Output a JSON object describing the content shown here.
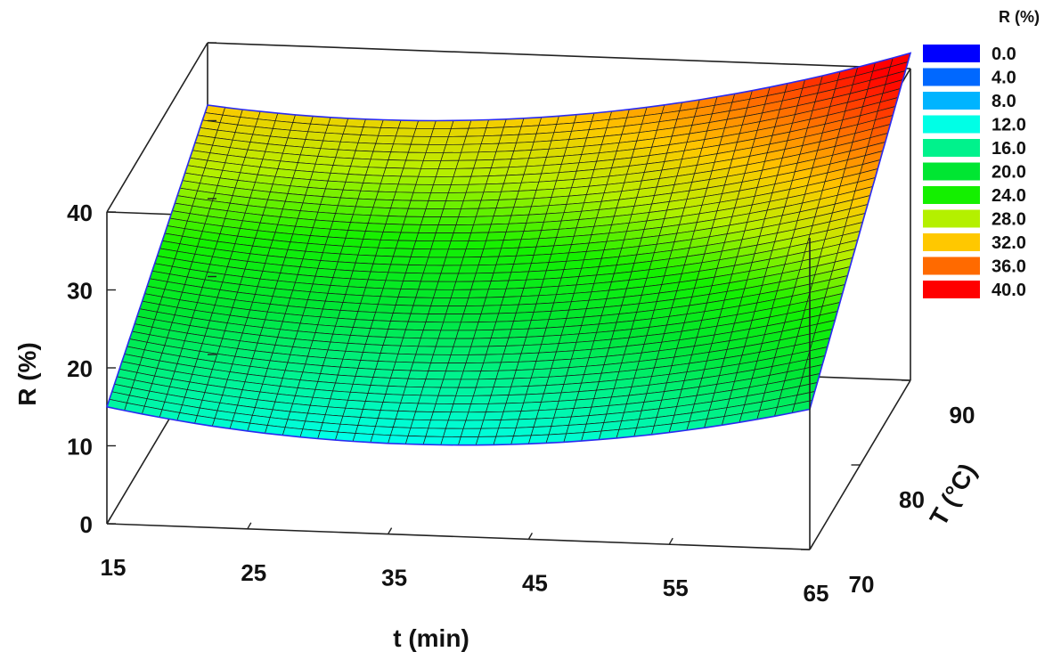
{
  "chart_data": {
    "type": "surface",
    "title": "",
    "xlabel": "t (min)",
    "ylabel": "T (°C)",
    "zlabel": "R (%)",
    "x_ticks": [
      "15",
      "25",
      "35",
      "45",
      "55",
      "65"
    ],
    "y_ticks": [
      "70",
      "80",
      "90"
    ],
    "z_ticks": [
      "0",
      "10",
      "20",
      "30",
      "40"
    ],
    "xlim": [
      15,
      65
    ],
    "ylim": [
      70,
      90
    ],
    "zlim": [
      0,
      40
    ],
    "surface_corners": [
      {
        "t": 15,
        "T": 70,
        "R": 15
      },
      {
        "t": 15,
        "T": 90,
        "R": 32
      },
      {
        "t": 65,
        "T": 70,
        "R": 18
      },
      {
        "t": 65,
        "T": 90,
        "R": 42
      }
    ],
    "surface_min": {
      "t": 37,
      "T": 70,
      "R": 10
    },
    "legend": {
      "title": "R (%)",
      "position": "top-right",
      "items": [
        {
          "label": "0.0",
          "color": "#0000ff"
        },
        {
          "label": "4.0",
          "color": "#0068ff"
        },
        {
          "label": "8.0",
          "color": "#00b4ff"
        },
        {
          "label": "12.0",
          "color": "#00ffe6"
        },
        {
          "label": "16.0",
          "color": "#00f28c"
        },
        {
          "label": "20.0",
          "color": "#00e632"
        },
        {
          "label": "24.0",
          "color": "#14f000"
        },
        {
          "label": "28.0",
          "color": "#b4f000"
        },
        {
          "label": "32.0",
          "color": "#ffc800"
        },
        {
          "label": "36.0",
          "color": "#ff6a00"
        },
        {
          "label": "40.0",
          "color": "#ff0000"
        }
      ]
    }
  }
}
